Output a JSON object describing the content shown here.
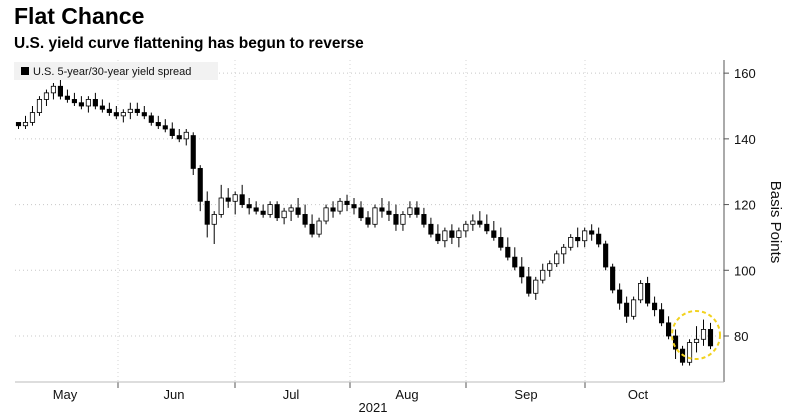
{
  "title": "Flat Chance",
  "subtitle": "U.S. yield curve flattening has begun to reverse",
  "chart_data": {
    "type": "candlestick",
    "title": "Flat Chance",
    "subtitle": "U.S. yield curve flattening has begun to reverse",
    "series_name": "U.S. 5-year/30-year yield spread",
    "ylabel": "Basis Points",
    "xlabel": "2021",
    "ylim": [
      66,
      164
    ],
    "yticks": [
      80,
      100,
      120,
      140,
      160
    ],
    "y_axis_position": "right",
    "legend_position": "top-left",
    "gridlines": "dotted",
    "months": [
      "May",
      "Jun",
      "Jul",
      "Aug",
      "Sep",
      "Oct"
    ],
    "year_label": "2021",
    "highlight": {
      "index_range": [
        120,
        124
      ],
      "description": "dashed yellow circle around latest readings"
    },
    "ohlc": [
      [
        145,
        145,
        143,
        144
      ],
      [
        144,
        147,
        143,
        145
      ],
      [
        145,
        150,
        144,
        148
      ],
      [
        148,
        153,
        147,
        152
      ],
      [
        152,
        155,
        150,
        154
      ],
      [
        154,
        157,
        152,
        156
      ],
      [
        156,
        158,
        152,
        153
      ],
      [
        153,
        155,
        151,
        152
      ],
      [
        152,
        154,
        150,
        151
      ],
      [
        151,
        153,
        149,
        150
      ],
      [
        150,
        153,
        148,
        152
      ],
      [
        152,
        154,
        149,
        150
      ],
      [
        150,
        152,
        148,
        149
      ],
      [
        149,
        151,
        147,
        148
      ],
      [
        148,
        150,
        146,
        147
      ],
      [
        147,
        149,
        145,
        148
      ],
      [
        148,
        151,
        146,
        149
      ],
      [
        149,
        151,
        147,
        148
      ],
      [
        148,
        150,
        146,
        147
      ],
      [
        147,
        148,
        144,
        145
      ],
      [
        145,
        147,
        143,
        144
      ],
      [
        144,
        146,
        142,
        143
      ],
      [
        143,
        145,
        140,
        141
      ],
      [
        141,
        143,
        139,
        140
      ],
      [
        140,
        143,
        138,
        142
      ],
      [
        141,
        142,
        129,
        131
      ],
      [
        131,
        132,
        118,
        121
      ],
      [
        121,
        124,
        110,
        114
      ],
      [
        114,
        118,
        108,
        117
      ],
      [
        117,
        126,
        116,
        122
      ],
      [
        122,
        125,
        119,
        121
      ],
      [
        121,
        124,
        117,
        123
      ],
      [
        123,
        126,
        119,
        120
      ],
      [
        120,
        122,
        117,
        119
      ],
      [
        119,
        121,
        117,
        118
      ],
      [
        118,
        120,
        116,
        117
      ],
      [
        117,
        121,
        116,
        120
      ],
      [
        120,
        121,
        115,
        116
      ],
      [
        116,
        119,
        114,
        118
      ],
      [
        118,
        120,
        115,
        119
      ],
      [
        119,
        122,
        116,
        117
      ],
      [
        117,
        120,
        113,
        114
      ],
      [
        114,
        117,
        110,
        111
      ],
      [
        111,
        116,
        110,
        115
      ],
      [
        115,
        120,
        114,
        119
      ],
      [
        119,
        121,
        116,
        118
      ],
      [
        118,
        122,
        117,
        121
      ],
      [
        121,
        123,
        118,
        120
      ],
      [
        120,
        122,
        117,
        119
      ],
      [
        119,
        121,
        115,
        116
      ],
      [
        116,
        118,
        113,
        114
      ],
      [
        114,
        120,
        113,
        119
      ],
      [
        119,
        122,
        116,
        118
      ],
      [
        118,
        121,
        115,
        117
      ],
      [
        117,
        120,
        112,
        114
      ],
      [
        114,
        118,
        112,
        117
      ],
      [
        117,
        121,
        116,
        119
      ],
      [
        119,
        121,
        116,
        117
      ],
      [
        117,
        119,
        113,
        114
      ],
      [
        114,
        116,
        110,
        111
      ],
      [
        111,
        114,
        108,
        109
      ],
      [
        109,
        113,
        107,
        112
      ],
      [
        112,
        114,
        108,
        110
      ],
      [
        110,
        113,
        107,
        112
      ],
      [
        112,
        115,
        110,
        114
      ],
      [
        114,
        117,
        112,
        115
      ],
      [
        115,
        118,
        113,
        114
      ],
      [
        114,
        117,
        111,
        112
      ],
      [
        112,
        115,
        109,
        110
      ],
      [
        110,
        113,
        106,
        107
      ],
      [
        107,
        110,
        103,
        104
      ],
      [
        104,
        107,
        100,
        101
      ],
      [
        101,
        104,
        96,
        98
      ],
      [
        98,
        101,
        92,
        93
      ],
      [
        93,
        98,
        91,
        97
      ],
      [
        97,
        102,
        96,
        100
      ],
      [
        100,
        103,
        98,
        102
      ],
      [
        102,
        106,
        101,
        105
      ],
      [
        105,
        108,
        102,
        107
      ],
      [
        107,
        111,
        106,
        110
      ],
      [
        110,
        113,
        107,
        109
      ],
      [
        109,
        113,
        107,
        112
      ],
      [
        112,
        114,
        109,
        111
      ],
      [
        111,
        113,
        107,
        108
      ],
      [
        108,
        109,
        100,
        101
      ],
      [
        101,
        102,
        93,
        94
      ],
      [
        94,
        96,
        88,
        90
      ],
      [
        90,
        92,
        84,
        86
      ],
      [
        86,
        92,
        85,
        91
      ],
      [
        91,
        97,
        90,
        96
      ],
      [
        96,
        98,
        89,
        90
      ],
      [
        90,
        92,
        86,
        88
      ],
      [
        88,
        90,
        83,
        84
      ],
      [
        84,
        86,
        79,
        80
      ],
      [
        80,
        82,
        73,
        76
      ],
      [
        76,
        77,
        71,
        72
      ],
      [
        72,
        79,
        71,
        78
      ],
      [
        78,
        83,
        75,
        79
      ],
      [
        79,
        85,
        77,
        82
      ],
      [
        82,
        84,
        76,
        77
      ]
    ]
  }
}
